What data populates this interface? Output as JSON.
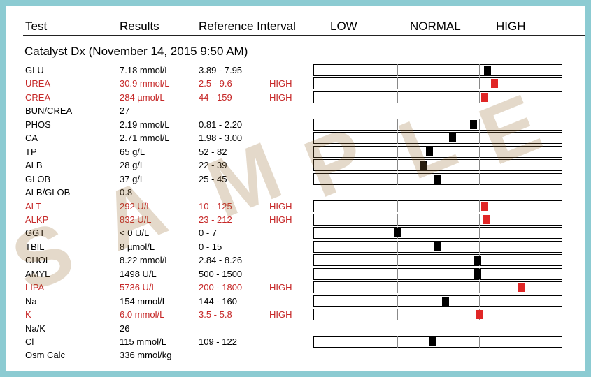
{
  "header": {
    "col_test": "Test",
    "col_results": "Results",
    "col_reference": "Reference Interval",
    "col_low": "LOW",
    "col_normal": "NORMAL",
    "col_high": "HIGH"
  },
  "panel_title": "Catalyst Dx (November 14, 2015 9:50 AM)",
  "watermark": "SAMPLE",
  "colors": {
    "high": "#c62828",
    "marker_high": "#e02626",
    "marker_normal": "#000000",
    "frame": "#8ccbd2"
  },
  "rows": [
    {
      "test": "GLU",
      "result": "7.18 mmol/L",
      "ref": "3.89 - 7.95",
      "flag": "",
      "high": false,
      "bar": true,
      "pos": 0.7
    },
    {
      "test": "UREA",
      "result": "30.9 mmol/L",
      "ref": "2.5 - 9.6",
      "flag": "HIGH",
      "high": true,
      "bar": true,
      "pos": 0.73
    },
    {
      "test": "CREA",
      "result": "284 µmol/L",
      "ref": "44 - 159",
      "flag": "HIGH",
      "high": true,
      "bar": true,
      "pos": 0.69
    },
    {
      "test": "BUN/CREA",
      "result": "27",
      "ref": "",
      "flag": "",
      "high": false,
      "bar": false
    },
    {
      "test": "PHOS",
      "result": "2.19 mmol/L",
      "ref": "0.81 - 2.20",
      "flag": "",
      "high": false,
      "bar": true,
      "pos": 0.645
    },
    {
      "test": "CA",
      "result": "2.71 mmol/L",
      "ref": "1.98 - 3.00",
      "flag": "",
      "high": false,
      "bar": true,
      "pos": 0.56
    },
    {
      "test": "TP",
      "result": "65 g/L",
      "ref": "52 - 82",
      "flag": "",
      "high": false,
      "bar": true,
      "pos": 0.465
    },
    {
      "test": "ALB",
      "result": "28 g/L",
      "ref": "22 - 39",
      "flag": "",
      "high": false,
      "bar": true,
      "pos": 0.44
    },
    {
      "test": "GLOB",
      "result": "37 g/L",
      "ref": "25 - 45",
      "flag": "",
      "high": false,
      "bar": true,
      "pos": 0.5
    },
    {
      "test": "ALB/GLOB",
      "result": "0.8",
      "ref": "",
      "flag": "",
      "high": false,
      "bar": false
    },
    {
      "test": "ALT",
      "result": "292 U/L",
      "ref": "10 - 125",
      "flag": "HIGH",
      "high": true,
      "bar": true,
      "pos": 0.69
    },
    {
      "test": "ALKP",
      "result": "832 U/L",
      "ref": "23 - 212",
      "flag": "HIGH",
      "high": true,
      "bar": true,
      "pos": 0.695
    },
    {
      "test": "GGT",
      "result": "< 0 U/L",
      "ref": "0 - 7",
      "flag": "",
      "high": false,
      "bar": true,
      "pos": 0.335
    },
    {
      "test": "TBIL",
      "result": "8 µmol/L",
      "ref": "0 - 15",
      "flag": "",
      "high": false,
      "bar": true,
      "pos": 0.5
    },
    {
      "test": "CHOL",
      "result": "8.22 mmol/L",
      "ref": "2.84 - 8.26",
      "flag": "",
      "high": false,
      "bar": true,
      "pos": 0.66
    },
    {
      "test": "AMYL",
      "result": "1498 U/L",
      "ref": "500 - 1500",
      "flag": "",
      "high": false,
      "bar": true,
      "pos": 0.66
    },
    {
      "test": "LIPA",
      "result": "5736 U/L",
      "ref": "200 - 1800",
      "flag": "HIGH",
      "high": true,
      "bar": true,
      "pos": 0.84
    },
    {
      "test": "Na",
      "result": "154 mmol/L",
      "ref": "144 - 160",
      "flag": "",
      "high": false,
      "bar": true,
      "pos": 0.53
    },
    {
      "test": "K",
      "result": "6.0 mmol/L",
      "ref": "3.5 - 5.8",
      "flag": "HIGH",
      "high": true,
      "bar": true,
      "pos": 0.67
    },
    {
      "test": "Na/K",
      "result": "26",
      "ref": "",
      "flag": "",
      "high": false,
      "bar": false
    },
    {
      "test": "Cl",
      "result": "115 mmol/L",
      "ref": "109 - 122",
      "flag": "",
      "high": false,
      "bar": true,
      "pos": 0.48
    },
    {
      "test": "Osm Calc",
      "result": "336 mmol/kg",
      "ref": "",
      "flag": "",
      "high": false,
      "bar": false
    }
  ]
}
